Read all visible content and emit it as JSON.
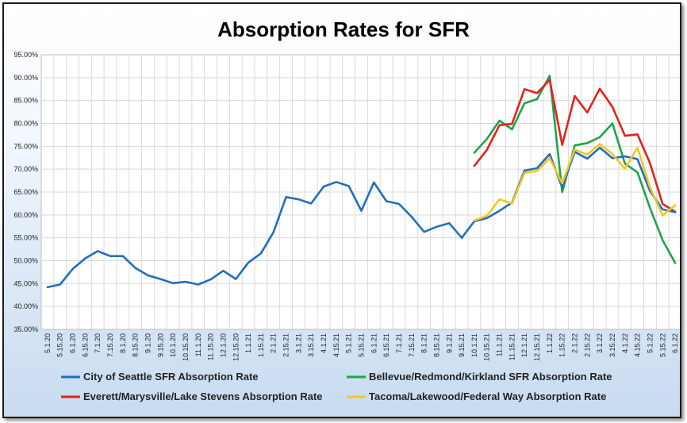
{
  "chart_data": {
    "type": "line",
    "title": "Absorption Rates for SFR",
    "xlabel": "",
    "ylabel": "",
    "ylim": [
      35,
      95
    ],
    "y_tick_values": [
      35,
      40,
      45,
      50,
      55,
      60,
      65,
      70,
      75,
      80,
      85,
      90,
      95
    ],
    "y_tick_labels": [
      "35.00%",
      "40.00%",
      "45.00%",
      "50.00%",
      "55.00%",
      "60.00%",
      "65.00%",
      "70.00%",
      "75.00%",
      "80.00%",
      "85.00%",
      "90.00%",
      "95.00%"
    ],
    "grid": true,
    "legend_position": "bottom",
    "categories": [
      "5.1.20",
      "5.15.20",
      "6.1.20",
      "6.15.20",
      "7.1.20",
      "7.15.20",
      "8.1.20",
      "8.15.20",
      "9.1.20",
      "9.15.20",
      "10.1.20",
      "10.15.20",
      "11.1.20",
      "11.15.20",
      "12.1.20",
      "12.15.20",
      "1.1.21",
      "1.15.21",
      "2.1.21",
      "2.15.21",
      "3.1.21",
      "3.15.21",
      "4.1.21",
      "4.15.21",
      "5.1.21",
      "5.15.21",
      "6.1.21",
      "6.15.21",
      "7.1.21",
      "7.15.21",
      "8.1.21",
      "8.15.21",
      "9.1.21",
      "9.15.21",
      "10.1.21",
      "10.15.21",
      "11.1.21",
      "11.15.21",
      "12.1.21",
      "12.15.21",
      "1.1.22",
      "1.15.22",
      "2.1.22",
      "2.15.22",
      "3.1.22",
      "3.15.22",
      "4.1.22",
      "4.15.22",
      "5.1.22",
      "5.15.22",
      "6.1.22"
    ],
    "series": [
      {
        "name": "City of Seattle SFR Absorption Rate",
        "color": "#1f6fbf",
        "values": [
          44.2,
          44.8,
          48.2,
          50.5,
          52.1,
          51.0,
          51.0,
          48.4,
          46.8,
          46.0,
          45.1,
          45.4,
          44.8,
          45.9,
          47.8,
          46.0,
          49.6,
          51.6,
          56.2,
          63.9,
          63.4,
          62.5,
          66.2,
          67.2,
          66.3,
          60.9,
          67.1,
          63.0,
          62.4,
          59.6,
          56.3,
          57.4,
          58.2,
          55.0,
          58.6,
          59.3,
          60.9,
          62.7,
          69.7,
          70.2,
          73.3,
          66.0,
          73.8,
          72.3,
          74.7,
          72.4,
          72.8,
          72.2,
          65.2,
          61.2,
          60.6
        ]
      },
      {
        "name": "Bellevue/Redmond/Kirkland SFR Absorption Rate",
        "color": "#1fa34a",
        "values": [
          null,
          null,
          null,
          null,
          null,
          null,
          null,
          null,
          null,
          null,
          null,
          null,
          null,
          null,
          null,
          null,
          null,
          null,
          null,
          null,
          null,
          null,
          null,
          null,
          null,
          null,
          null,
          null,
          null,
          null,
          null,
          null,
          null,
          null,
          73.6,
          76.6,
          80.6,
          78.7,
          84.4,
          85.3,
          90.4,
          65.0,
          75.2,
          75.7,
          77.0,
          80.0,
          71.2,
          69.3,
          61.5,
          54.5,
          49.5
        ]
      },
      {
        "name": "Everett/Marysville/Lake Stevens Absorption Rate",
        "color": "#e3211c",
        "values": [
          null,
          null,
          null,
          null,
          null,
          null,
          null,
          null,
          null,
          null,
          null,
          null,
          null,
          null,
          null,
          null,
          null,
          null,
          null,
          null,
          null,
          null,
          null,
          null,
          null,
          null,
          null,
          null,
          null,
          null,
          null,
          null,
          null,
          null,
          70.7,
          74.2,
          79.6,
          79.9,
          87.5,
          86.6,
          89.5,
          75.3,
          86.0,
          82.4,
          87.6,
          83.6,
          77.3,
          77.6,
          71.3,
          62.4,
          60.7
        ]
      },
      {
        "name": "Tacoma/Lakewood/Federal Way Absorption Rate",
        "color": "#f7c51c",
        "values": [
          null,
          null,
          null,
          null,
          null,
          null,
          null,
          null,
          null,
          null,
          null,
          null,
          null,
          null,
          null,
          null,
          null,
          null,
          null,
          null,
          null,
          null,
          null,
          null,
          null,
          null,
          null,
          null,
          null,
          null,
          null,
          null,
          null,
          null,
          58.8,
          59.8,
          63.4,
          62.5,
          69.2,
          69.6,
          72.4,
          66.9,
          74.3,
          73.2,
          75.5,
          73.3,
          70.1,
          74.7,
          66.0,
          59.9,
          62.1
        ]
      }
    ]
  }
}
